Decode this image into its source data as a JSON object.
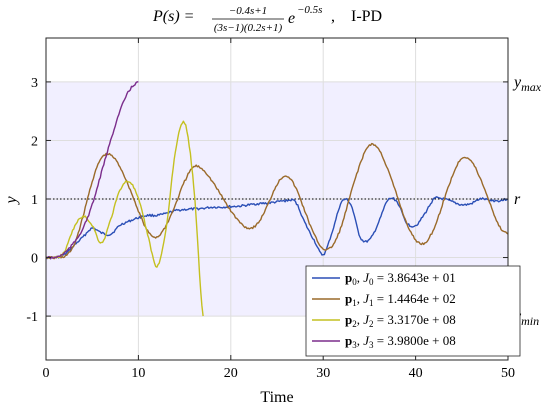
{
  "chart_data": {
    "type": "line",
    "title": "P(s) = (−0.4s+1)/((3s−1)(0.2s+1)) e^(−0.5s),    I-PD",
    "title_parts": {
      "lhs": "P(s) = ",
      "num": "−0.4s+1",
      "den": "(3s−1)(0.2s+1)",
      "exp_base": "e",
      "exp": "−0.5s",
      "suffix": ",    I-PD"
    },
    "xlabel": "Time",
    "ylabel": "y",
    "xlim": [
      0,
      50
    ],
    "ylim": [
      -1.75,
      3.75
    ],
    "xticks": [
      0,
      10,
      20,
      30,
      40,
      50
    ],
    "yticks": [
      -1,
      0,
      1,
      2,
      3
    ],
    "grid": true,
    "legend_position": "bottom-right",
    "shaded_band": {
      "from": -1,
      "to": 3,
      "color": "#f1efff"
    },
    "reference": {
      "value": 1,
      "label": "r"
    },
    "right_labels": [
      {
        "value": 3,
        "label": "y",
        "sub": "max"
      },
      {
        "value": -1,
        "label": "y",
        "sub": "min"
      }
    ],
    "series": [
      {
        "name": "p0, J0 = 3.8643e+01",
        "legend": {
          "p": "p",
          "idx": "0",
          "j": "J",
          "val": " = 3.8643e + 01"
        },
        "color": "#2b4fb6",
        "x": [
          0,
          1,
          2,
          3,
          4,
          5,
          6,
          7,
          8,
          9,
          10,
          11,
          12,
          13,
          14,
          15,
          16,
          17,
          18,
          19,
          20,
          21,
          22,
          23,
          24,
          25,
          26,
          27,
          28,
          29,
          30,
          31,
          32,
          33,
          34,
          35,
          36,
          37,
          38,
          39,
          40,
          41,
          42,
          43,
          44,
          45,
          46,
          47,
          48,
          49,
          50
        ],
        "y": [
          0,
          0,
          0.05,
          0.2,
          0.35,
          0.5,
          0.42,
          0.4,
          0.55,
          0.62,
          0.68,
          0.72,
          0.72,
          0.75,
          0.8,
          0.82,
          0.83,
          0.84,
          0.86,
          0.86,
          0.87,
          0.88,
          0.9,
          0.92,
          0.93,
          0.95,
          0.97,
          0.95,
          0.6,
          0.3,
          0.05,
          0.45,
          0.95,
          0.9,
          0.35,
          0.3,
          0.6,
          0.98,
          0.95,
          0.6,
          0.55,
          0.75,
          1.0,
          1.0,
          0.95,
          0.9,
          0.92,
          1.0,
          0.98,
          0.97,
          1.0
        ]
      },
      {
        "name": "p1, J1 = 1.4464e+02",
        "legend": {
          "p": "p",
          "idx": "1",
          "j": "J",
          "val": " = 1.4464e + 02"
        },
        "color": "#9a6a2a",
        "x": [
          0,
          1,
          2,
          3,
          4,
          5,
          6,
          7,
          8,
          9,
          10,
          11,
          12,
          13,
          14,
          15,
          16,
          17,
          18,
          19,
          20,
          21,
          22,
          23,
          24,
          25,
          26,
          27,
          28,
          29,
          30,
          31,
          32,
          33,
          34,
          35,
          36,
          37,
          38,
          39,
          40,
          41,
          42,
          43,
          44,
          45,
          46,
          47,
          48,
          49,
          50
        ],
        "y": [
          0,
          0,
          0.02,
          0.2,
          0.7,
          1.3,
          1.7,
          1.75,
          1.55,
          1.2,
          0.8,
          0.45,
          0.35,
          0.55,
          0.9,
          1.3,
          1.55,
          1.5,
          1.3,
          1.05,
          0.8,
          0.6,
          0.5,
          0.6,
          0.9,
          1.25,
          1.4,
          1.2,
          0.8,
          0.4,
          0.15,
          0.2,
          0.55,
          1.1,
          1.6,
          1.92,
          1.85,
          1.5,
          1.05,
          0.6,
          0.3,
          0.25,
          0.5,
          0.95,
          1.4,
          1.7,
          1.65,
          1.35,
          0.95,
          0.55,
          0.4
        ]
      },
      {
        "name": "p2, J2 = 3.3170e+08",
        "legend": {
          "p": "p",
          "idx": "2",
          "j": "J",
          "val": " = 3.3170e + 08"
        },
        "color": "#c4c020",
        "x": [
          0,
          1,
          2,
          3,
          4,
          5,
          6,
          7,
          8,
          9,
          10,
          11,
          12,
          13,
          14,
          15,
          16,
          17
        ],
        "y": [
          0,
          0,
          0.1,
          0.5,
          0.7,
          0.55,
          0.25,
          0.65,
          1.15,
          1.3,
          1.0,
          0.4,
          -0.15,
          0.5,
          1.8,
          2.3,
          1.2,
          -1.0
        ]
      },
      {
        "name": "p3, J3 = 3.9800e+08",
        "legend": {
          "p": "p",
          "idx": "3",
          "j": "J",
          "val": " = 3.9800e + 08"
        },
        "color": "#7b2d8c",
        "x": [
          0,
          1,
          2,
          3,
          4,
          5,
          6,
          7,
          8,
          9,
          10
        ],
        "y": [
          0,
          0,
          0.08,
          0.25,
          0.5,
          0.9,
          1.45,
          2.0,
          2.5,
          2.85,
          3.0
        ]
      }
    ]
  }
}
